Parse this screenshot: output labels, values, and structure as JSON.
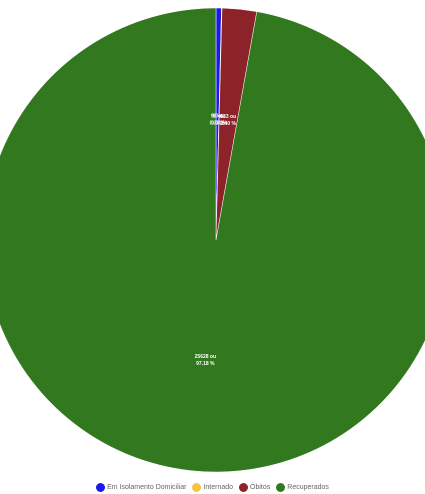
{
  "chart_data": {
    "type": "pie",
    "categories": [
      "Em Isolamento Domiciliar",
      "Internado",
      "Óbitos",
      "Recuperados"
    ],
    "values": [
      99,
      10,
      633,
      25628
    ],
    "percent_labels": [
      "0.38 %",
      "0.04 %",
      "2.40 %",
      "97.18 %"
    ],
    "value_labels": [
      "99 ou",
      "10 ou",
      "633 ou",
      "25628 ou"
    ],
    "colors": [
      "#1a1ae6",
      "#f6c443",
      "#8b2328",
      "#31781f"
    ],
    "start_angle_deg": 0,
    "legend_position": "bottom"
  }
}
